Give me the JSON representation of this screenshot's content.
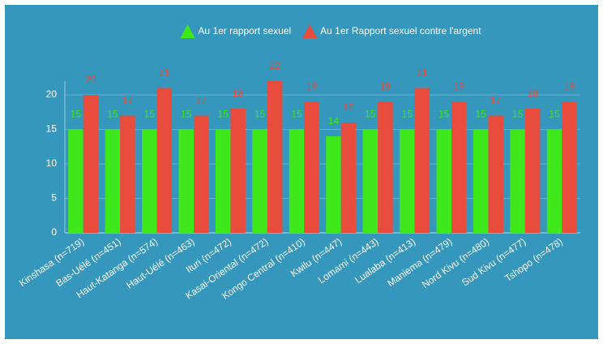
{
  "chart_data": {
    "type": "bar",
    "categories": [
      "Kinshasa (n=719)",
      "Bas-Uélé (n=451)",
      "Haut-Katanga (n=574)",
      "Haut-Uélé (n=463)",
      "Ituri (n=472)",
      "Kasai-Oriental (n=472)",
      "Kongo Central (n=410)",
      "Kwilu (n=447)",
      "Lomami (n=443)",
      "Lualaba (n=413)",
      "Maniema (n=479)",
      "Nord Kivu (n=480)",
      "Sud Kivu (n=477)",
      "Tshopo (n=478)"
    ],
    "series": [
      {
        "name": "Au 1er rapport sexuel",
        "color": "#3ee81a",
        "values": [
          15,
          15,
          15,
          15,
          15,
          15,
          15,
          14,
          15,
          15,
          15,
          15,
          15,
          15
        ]
      },
      {
        "name": "Au 1er Rapport sexuel contre l'argent",
        "color": "#e84c3d",
        "values": [
          20,
          17,
          21,
          17,
          18,
          22,
          19,
          16,
          19,
          21,
          19,
          17,
          18,
          19
        ]
      }
    ],
    "ylim": [
      0,
      22
    ],
    "yticks": [
      0,
      5,
      10,
      15,
      20
    ],
    "grid": true
  }
}
